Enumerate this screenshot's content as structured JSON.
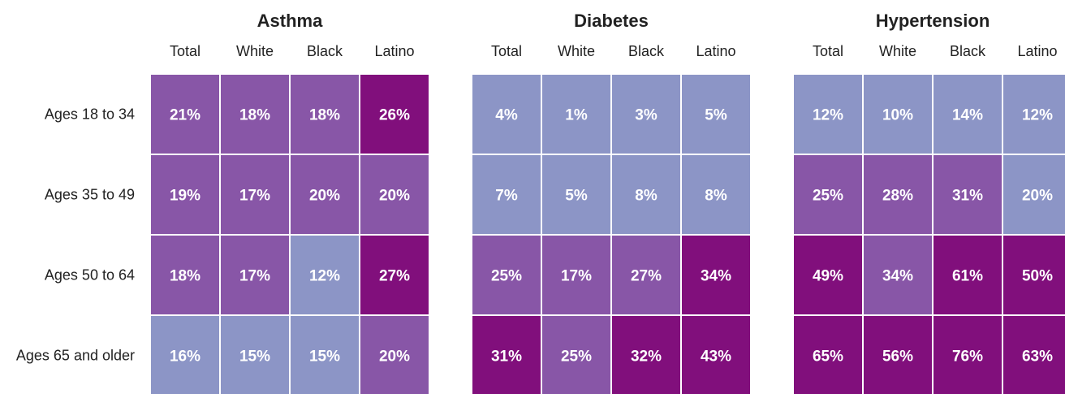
{
  "chart_data": {
    "type": "heatmap",
    "panels": [
      {
        "title": "Asthma",
        "columns": [
          "Total",
          "White",
          "Black",
          "Latino"
        ],
        "values": [
          [
            "21%",
            "18%",
            "18%",
            "26%"
          ],
          [
            "19%",
            "17%",
            "20%",
            "20%"
          ],
          [
            "18%",
            "17%",
            "12%",
            "27%"
          ],
          [
            "16%",
            "15%",
            "15%",
            "20%"
          ]
        ],
        "levels": [
          [
            2,
            2,
            2,
            3
          ],
          [
            2,
            2,
            2,
            2
          ],
          [
            2,
            2,
            1,
            3
          ],
          [
            1,
            1,
            1,
            2
          ]
        ]
      },
      {
        "title": "Diabetes",
        "columns": [
          "Total",
          "White",
          "Black",
          "Latino"
        ],
        "values": [
          [
            "4%",
            "1%",
            "3%",
            "5%"
          ],
          [
            "7%",
            "5%",
            "8%",
            "8%"
          ],
          [
            "25%",
            "17%",
            "27%",
            "34%"
          ],
          [
            "31%",
            "25%",
            "32%",
            "43%"
          ]
        ],
        "levels": [
          [
            1,
            1,
            1,
            1
          ],
          [
            1,
            1,
            1,
            1
          ],
          [
            2,
            2,
            2,
            3
          ],
          [
            3,
            2,
            3,
            3
          ]
        ]
      },
      {
        "title": "Hypertension",
        "columns": [
          "Total",
          "White",
          "Black",
          "Latino"
        ],
        "values": [
          [
            "12%",
            "10%",
            "14%",
            "12%"
          ],
          [
            "25%",
            "28%",
            "31%",
            "20%"
          ],
          [
            "49%",
            "34%",
            "61%",
            "50%"
          ],
          [
            "65%",
            "56%",
            "76%",
            "63%"
          ]
        ],
        "levels": [
          [
            1,
            1,
            1,
            1
          ],
          [
            2,
            2,
            2,
            1
          ],
          [
            3,
            2,
            3,
            3
          ],
          [
            3,
            3,
            3,
            3
          ]
        ]
      }
    ],
    "rows": [
      "Ages 18 to 34",
      "Ages 35 to 49",
      "Ages 50 to 64",
      "Ages 65 and older"
    ],
    "colors": {
      "level_1": "#8c95c6",
      "level_2": "#8856a7",
      "level_3": "#810f7c",
      "cell_text": "#ffffff"
    },
    "grid": false,
    "legend": "none"
  }
}
